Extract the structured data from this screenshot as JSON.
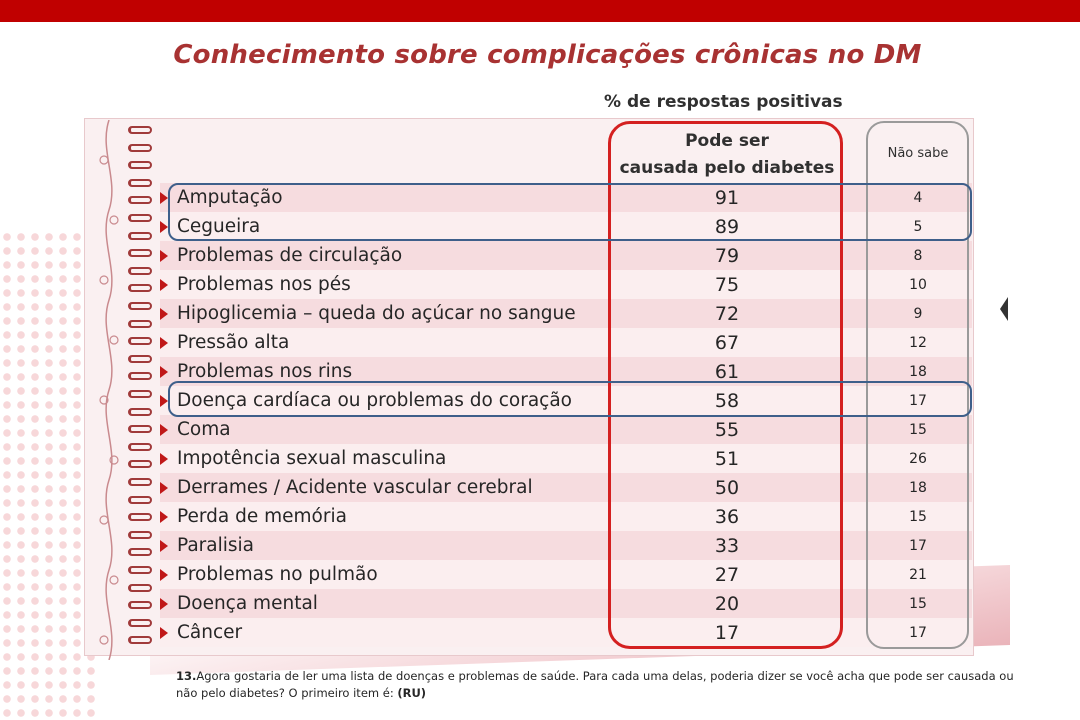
{
  "title": "Conhecimento sobre complicações crônicas no DM",
  "table": {
    "group_header": "% de respostas positivas",
    "col_main_line1": "Pode ser",
    "col_main_line2": "causada pelo diabetes",
    "col_side": "Não sabe",
    "rows": [
      {
        "label": "Amputação",
        "value": "91",
        "nao_sabe": "4"
      },
      {
        "label": "Cegueira",
        "value": "89",
        "nao_sabe": "5"
      },
      {
        "label": "Problemas de circulação",
        "value": "79",
        "nao_sabe": "8"
      },
      {
        "label": "Problemas nos pés",
        "value": "75",
        "nao_sabe": "10"
      },
      {
        "label": "Hipoglicemia – queda do açúcar no sangue",
        "value": "72",
        "nao_sabe": "9"
      },
      {
        "label": "Pressão alta",
        "value": "67",
        "nao_sabe": "12"
      },
      {
        "label": "Problemas nos rins",
        "value": "61",
        "nao_sabe": "18"
      },
      {
        "label": "Doença cardíaca ou problemas do coração",
        "value": "58",
        "nao_sabe": "17"
      },
      {
        "label": "Coma",
        "value": "55",
        "nao_sabe": "15"
      },
      {
        "label": "Impotência sexual masculina",
        "value": "51",
        "nao_sabe": "26"
      },
      {
        "label": "Derrames / Acidente vascular cerebral",
        "value": "50",
        "nao_sabe": "18"
      },
      {
        "label": "Perda de memória",
        "value": "36",
        "nao_sabe": "15"
      },
      {
        "label": "Paralisia",
        "value": "33",
        "nao_sabe": "17"
      },
      {
        "label": "Problemas no pulmão",
        "value": "27",
        "nao_sabe": "21"
      },
      {
        "label": "Doença mental",
        "value": "20",
        "nao_sabe": "15"
      },
      {
        "label": "Câncer",
        "value": "17",
        "nao_sabe": "17"
      }
    ]
  },
  "footnote": {
    "number": "13.",
    "text": "Agora gostaria de ler uma lista de doenças e problemas de saúde. Para cada uma delas, poderia dizer se você acha que pode ser causada ou não pelo diabetes? O primeiro item é: ",
    "code": "(RU)"
  },
  "colors": {
    "top_bar": "#c00000",
    "title": "#a83232",
    "highlight_main": "#d42020",
    "highlight_side": "#9a9a9a",
    "highlight_rows": "#3e5f8a"
  }
}
